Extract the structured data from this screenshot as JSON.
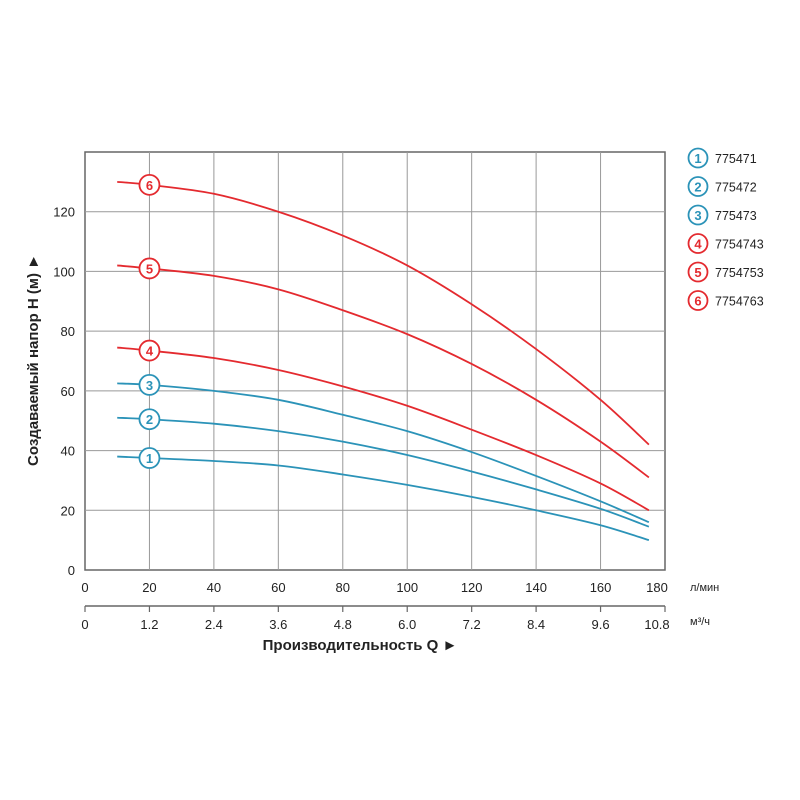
{
  "chart_data": {
    "type": "line",
    "xlabel": "Производительность Q ►",
    "ylabel": "Создаваемый напор H (м) ►",
    "x_unit": "л/мин",
    "x2_unit": "м³/ч",
    "xlim": [
      0,
      180
    ],
    "ylim": [
      0,
      140
    ],
    "x_ticks": [
      0,
      20,
      40,
      60,
      80,
      100,
      120,
      140,
      160,
      180
    ],
    "x2_ticks": [
      "0",
      "1.2",
      "2.4",
      "3.6",
      "4.8",
      "6.0",
      "7.2",
      "8.4",
      "9.6",
      "10.8"
    ],
    "y_ticks": [
      0,
      20,
      40,
      60,
      80,
      100,
      120
    ],
    "grid": true,
    "legend_placement": "right",
    "colors": {
      "blue": "#2b93b8",
      "red": "#e42a2f"
    },
    "x": [
      10,
      20,
      40,
      60,
      80,
      100,
      120,
      140,
      160,
      175
    ],
    "series": [
      {
        "marker": "1",
        "name": "775471",
        "color": "#2b93b8",
        "values": [
          38,
          37.5,
          36.5,
          35,
          32,
          28.5,
          24.5,
          20,
          15,
          10
        ]
      },
      {
        "marker": "2",
        "name": "775472",
        "color": "#2b93b8",
        "values": [
          51,
          50.5,
          49,
          46.5,
          43,
          38.5,
          33,
          27,
          20.5,
          14.5
        ]
      },
      {
        "marker": "3",
        "name": "775473",
        "color": "#2b93b8",
        "values": [
          62.5,
          62,
          60,
          57,
          52,
          46.5,
          39.5,
          31.5,
          23,
          16
        ]
      },
      {
        "marker": "4",
        "name": "7754743",
        "color": "#e42a2f",
        "values": [
          74.5,
          73.5,
          71,
          67,
          61.5,
          55,
          47,
          38.5,
          29,
          20
        ]
      },
      {
        "marker": "5",
        "name": "7754753",
        "color": "#e42a2f",
        "values": [
          102,
          101,
          98.5,
          94,
          87,
          79,
          69,
          57,
          43,
          31
        ]
      },
      {
        "marker": "6",
        "name": "7754763",
        "color": "#e42a2f",
        "values": [
          130,
          129,
          126,
          120,
          112,
          102,
          89,
          74,
          57,
          42
        ]
      }
    ]
  }
}
